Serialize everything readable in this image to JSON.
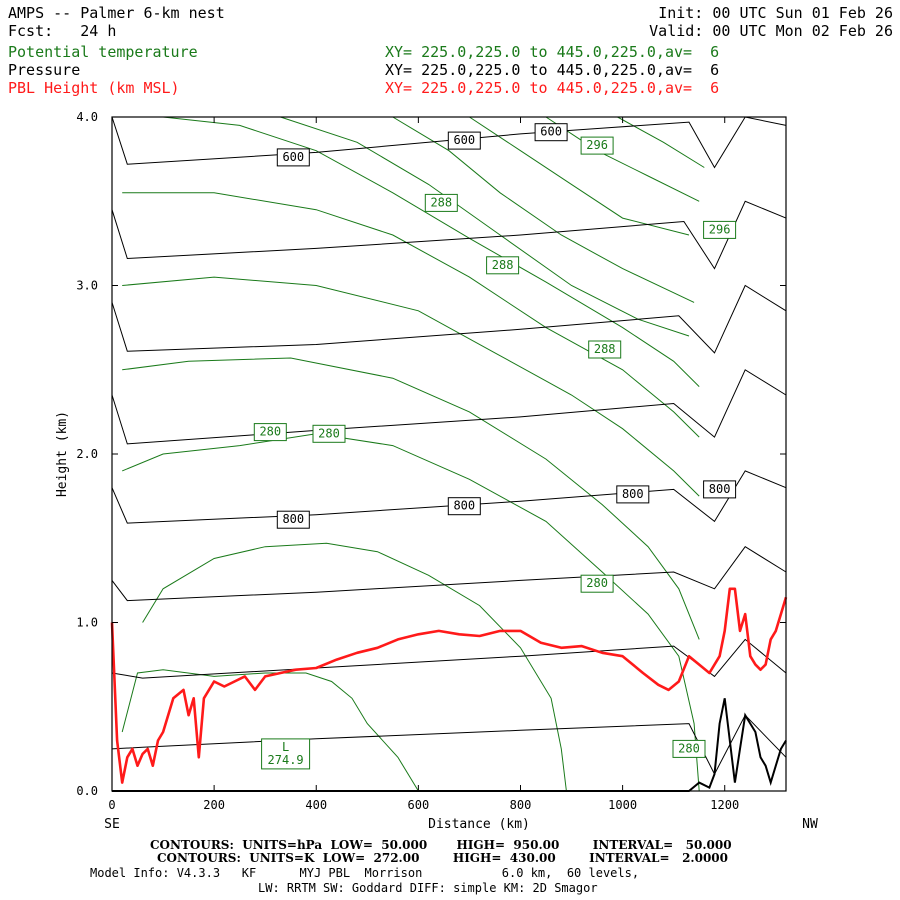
{
  "header": {
    "title": "AMPS -- Palmer 6-km nest",
    "init": "Init: 00 UTC Sun 01 Feb 26",
    "fcst": "Fcst:   24 h",
    "valid": "Valid: 00 UTC Mon 02 Feb 26",
    "fields": [
      {
        "label": "Potential temperature",
        "xy": "XY= 225.0,225.0 to 445.0,225.0,av=  6",
        "color": "#1a7a1a"
      },
      {
        "label": "Pressure",
        "xy": "XY= 225.0,225.0 to 445.0,225.0,av=  6",
        "color": "#000000"
      },
      {
        "label": "PBL Height (km MSL)",
        "xy": "XY= 225.0,225.0 to 445.0,225.0,av=  6",
        "color": "#ff1a1a"
      }
    ]
  },
  "footer": {
    "pressure_contours": "CONTOURS:  UNITS=hPa  LOW=  50.000       HIGH=  950.00        INTERVAL=   50.000",
    "theta_contours": "CONTOURS:  UNITS=K  LOW=  272.00        HIGH=  430.00        INTERVAL=   2.0000",
    "model_info_1": "Model Info: V4.3.3   KF      MYJ PBL  Morrison           6.0 km,  60 levels,",
    "model_info_2": "LW: RRTM SW: Goddard DIFF: simple KM: 2D Smagor"
  },
  "chart_data": {
    "type": "line",
    "xlabel": "Distance (km)",
    "ylabel": "Height (km)",
    "xlim": [
      0,
      1320
    ],
    "ylim": [
      0,
      4
    ],
    "x_ticks": [
      0,
      200,
      400,
      600,
      800,
      1000,
      1200
    ],
    "x_tick_labels": [
      "0",
      "200",
      "400",
      "600",
      "800",
      "1000",
      "1200"
    ],
    "y_ticks": [
      0,
      1,
      2,
      3,
      4
    ],
    "y_tick_labels": [
      "0.0",
      "1.0",
      "2.0",
      "3.0",
      "4.0"
    ],
    "x_end_labels": {
      "left": "SE",
      "right": "NW"
    },
    "pressure_isobars": [
      {
        "points": [
          [
            0,
            0.25
          ],
          [
            60,
            0.26
          ],
          [
            400,
            0.31
          ],
          [
            800,
            0.36
          ],
          [
            1130,
            0.4
          ],
          [
            1180,
            0.1
          ],
          [
            1240,
            0.45
          ],
          [
            1320,
            0.2
          ]
        ]
      },
      {
        "points": [
          [
            0,
            0.7
          ],
          [
            60,
            0.67
          ],
          [
            400,
            0.73
          ],
          [
            800,
            0.8
          ],
          [
            1100,
            0.86
          ],
          [
            1180,
            0.68
          ],
          [
            1240,
            0.9
          ],
          [
            1320,
            0.7
          ]
        ]
      },
      {
        "points": [
          [
            0,
            1.25
          ],
          [
            30,
            1.13
          ],
          [
            400,
            1.18
          ],
          [
            800,
            1.25
          ],
          [
            1100,
            1.3
          ],
          [
            1180,
            1.2
          ],
          [
            1240,
            1.45
          ],
          [
            1320,
            1.3
          ]
        ]
      },
      {
        "points": [
          [
            0,
            1.8
          ],
          [
            30,
            1.59
          ],
          [
            400,
            1.64
          ],
          [
            800,
            1.72
          ],
          [
            1100,
            1.79
          ],
          [
            1180,
            1.6
          ],
          [
            1240,
            1.9
          ],
          [
            1320,
            1.8
          ]
        ]
      },
      {
        "points": [
          [
            0,
            2.35
          ],
          [
            30,
            2.06
          ],
          [
            400,
            2.14
          ],
          [
            800,
            2.22
          ],
          [
            1100,
            2.3
          ],
          [
            1180,
            2.1
          ],
          [
            1240,
            2.5
          ],
          [
            1320,
            2.35
          ]
        ]
      },
      {
        "points": [
          [
            0,
            2.9
          ],
          [
            30,
            2.61
          ],
          [
            400,
            2.65
          ],
          [
            800,
            2.74
          ],
          [
            1110,
            2.82
          ],
          [
            1180,
            2.6
          ],
          [
            1240,
            3.0
          ],
          [
            1320,
            2.85
          ]
        ]
      },
      {
        "points": [
          [
            0,
            3.45
          ],
          [
            30,
            3.16
          ],
          [
            400,
            3.22
          ],
          [
            800,
            3.3
          ],
          [
            1120,
            3.38
          ],
          [
            1180,
            3.1
          ],
          [
            1240,
            3.5
          ],
          [
            1320,
            3.4
          ]
        ]
      },
      {
        "points": [
          [
            0,
            4.0
          ],
          [
            30,
            3.72
          ],
          [
            400,
            3.79
          ],
          [
            800,
            3.9
          ],
          [
            1130,
            3.97
          ],
          [
            1180,
            3.7
          ],
          [
            1240,
            4.0
          ],
          [
            1320,
            3.95
          ]
        ]
      }
    ],
    "pressure_labels": [
      {
        "x": 355,
        "y": 1.61,
        "text": "800"
      },
      {
        "x": 690,
        "y": 1.69,
        "text": "800"
      },
      {
        "x": 1020,
        "y": 1.76,
        "text": "800"
      },
      {
        "x": 1190,
        "y": 1.79,
        "text": "800"
      },
      {
        "x": 355,
        "y": 3.76,
        "text": "600"
      },
      {
        "x": 690,
        "y": 3.86,
        "text": "600"
      },
      {
        "x": 860,
        "y": 3.91,
        "text": "600"
      }
    ],
    "theta_isentropes": [
      {
        "points": [
          [
            20,
            0.35
          ],
          [
            50,
            0.7
          ],
          [
            100,
            0.72
          ],
          [
            200,
            0.68
          ],
          [
            300,
            0.7
          ],
          [
            380,
            0.7
          ],
          [
            430,
            0.65
          ],
          [
            470,
            0.55
          ],
          [
            500,
            0.4
          ],
          [
            560,
            0.2
          ],
          [
            600,
            0.0
          ]
        ]
      },
      {
        "points": [
          [
            60,
            1.0
          ],
          [
            100,
            1.2
          ],
          [
            200,
            1.38
          ],
          [
            300,
            1.45
          ],
          [
            420,
            1.47
          ],
          [
            520,
            1.42
          ],
          [
            620,
            1.28
          ],
          [
            720,
            1.1
          ],
          [
            800,
            0.85
          ],
          [
            860,
            0.55
          ],
          [
            880,
            0.25
          ],
          [
            890,
            0.0
          ]
        ]
      },
      {
        "points": [
          [
            20,
            1.9
          ],
          [
            100,
            2.0
          ],
          [
            250,
            2.05
          ],
          [
            400,
            2.12
          ],
          [
            550,
            2.05
          ],
          [
            700,
            1.85
          ],
          [
            850,
            1.6
          ],
          [
            960,
            1.3
          ],
          [
            1050,
            1.05
          ],
          [
            1110,
            0.8
          ],
          [
            1140,
            0.4
          ],
          [
            1150,
            0.0
          ]
        ]
      },
      {
        "points": [
          [
            20,
            2.5
          ],
          [
            150,
            2.55
          ],
          [
            350,
            2.57
          ],
          [
            550,
            2.45
          ],
          [
            700,
            2.25
          ],
          [
            850,
            1.97
          ],
          [
            960,
            1.7
          ],
          [
            1050,
            1.45
          ],
          [
            1110,
            1.2
          ],
          [
            1150,
            0.9
          ]
        ]
      },
      {
        "points": [
          [
            20,
            3.0
          ],
          [
            200,
            3.05
          ],
          [
            400,
            3.0
          ],
          [
            600,
            2.85
          ],
          [
            750,
            2.6
          ],
          [
            900,
            2.35
          ],
          [
            1000,
            2.15
          ],
          [
            1100,
            1.9
          ],
          [
            1150,
            1.75
          ]
        ]
      },
      {
        "points": [
          [
            20,
            3.55
          ],
          [
            200,
            3.55
          ],
          [
            400,
            3.45
          ],
          [
            550,
            3.3
          ],
          [
            700,
            3.05
          ],
          [
            850,
            2.75
          ],
          [
            1000,
            2.5
          ],
          [
            1100,
            2.25
          ],
          [
            1150,
            2.1
          ]
        ]
      },
      {
        "points": [
          [
            100,
            4.0
          ],
          [
            250,
            3.95
          ],
          [
            400,
            3.8
          ],
          [
            550,
            3.55
          ],
          [
            700,
            3.28
          ],
          [
            850,
            3.02
          ],
          [
            1000,
            2.75
          ],
          [
            1100,
            2.55
          ],
          [
            1150,
            2.4
          ]
        ]
      },
      {
        "points": [
          [
            330,
            4.0
          ],
          [
            480,
            3.85
          ],
          [
            620,
            3.6
          ],
          [
            760,
            3.3
          ],
          [
            900,
            3.0
          ],
          [
            1030,
            2.8
          ],
          [
            1130,
            2.7
          ]
        ]
      },
      {
        "points": [
          [
            550,
            4.0
          ],
          [
            660,
            3.8
          ],
          [
            760,
            3.55
          ],
          [
            880,
            3.3
          ],
          [
            1000,
            3.1
          ],
          [
            1140,
            2.9
          ]
        ]
      },
      {
        "points": [
          [
            700,
            4.0
          ],
          [
            800,
            3.8
          ],
          [
            900,
            3.6
          ],
          [
            1000,
            3.4
          ],
          [
            1130,
            3.3
          ]
        ]
      },
      {
        "points": [
          [
            850,
            4.0
          ],
          [
            950,
            3.8
          ],
          [
            1050,
            3.65
          ],
          [
            1150,
            3.5
          ]
        ]
      },
      {
        "points": [
          [
            990,
            4.0
          ],
          [
            1080,
            3.85
          ],
          [
            1160,
            3.7
          ]
        ]
      }
    ],
    "theta_labels": [
      {
        "x": 340,
        "y": 0.22,
        "text": "L\n274.9"
      },
      {
        "x": 1130,
        "y": 0.25,
        "text": "280"
      },
      {
        "x": 950,
        "y": 1.23,
        "text": "280"
      },
      {
        "x": 310,
        "y": 2.13,
        "text": "280"
      },
      {
        "x": 425,
        "y": 2.12,
        "text": "280"
      },
      {
        "x": 645,
        "y": 3.49,
        "text": "288"
      },
      {
        "x": 765,
        "y": 3.12,
        "text": "288"
      },
      {
        "x": 965,
        "y": 2.62,
        "text": "288"
      },
      {
        "x": 950,
        "y": 3.83,
        "text": "296"
      },
      {
        "x": 1190,
        "y": 3.33,
        "text": "296"
      }
    ],
    "pbl_height": {
      "name": "PBL Height (km MSL)",
      "color": "#ff1a1a",
      "x": [
        0,
        10,
        20,
        30,
        40,
        50,
        60,
        70,
        80,
        90,
        100,
        120,
        140,
        150,
        160,
        170,
        180,
        200,
        220,
        240,
        260,
        280,
        300,
        330,
        360,
        400,
        440,
        480,
        520,
        560,
        600,
        640,
        680,
        720,
        760,
        800,
        840,
        880,
        920,
        960,
        1000,
        1040,
        1070,
        1090,
        1110,
        1130,
        1150,
        1170,
        1190,
        1200,
        1210,
        1220,
        1230,
        1240,
        1250,
        1260,
        1270,
        1280,
        1290,
        1300,
        1310,
        1320
      ],
      "y": [
        1.0,
        0.3,
        0.05,
        0.2,
        0.25,
        0.15,
        0.22,
        0.25,
        0.15,
        0.3,
        0.35,
        0.55,
        0.6,
        0.45,
        0.55,
        0.2,
        0.55,
        0.65,
        0.62,
        0.65,
        0.68,
        0.6,
        0.68,
        0.7,
        0.72,
        0.73,
        0.78,
        0.82,
        0.85,
        0.9,
        0.93,
        0.95,
        0.93,
        0.92,
        0.95,
        0.95,
        0.88,
        0.85,
        0.86,
        0.82,
        0.8,
        0.7,
        0.63,
        0.6,
        0.65,
        0.8,
        0.75,
        0.7,
        0.8,
        0.95,
        1.2,
        1.2,
        0.95,
        1.05,
        0.8,
        0.75,
        0.72,
        0.75,
        0.9,
        0.95,
        1.05,
        1.15
      ]
    },
    "terrain": {
      "x": [
        0,
        1130,
        1150,
        1170,
        1180,
        1190,
        1200,
        1210,
        1220,
        1230,
        1240,
        1250,
        1260,
        1270,
        1280,
        1290,
        1300,
        1310,
        1320
      ],
      "y": [
        0,
        0,
        0.05,
        0.02,
        0.1,
        0.4,
        0.55,
        0.3,
        0.05,
        0.25,
        0.45,
        0.4,
        0.35,
        0.2,
        0.15,
        0.05,
        0.15,
        0.25,
        0.3
      ]
    },
    "colors": {
      "theta": "#1a7a1a",
      "pressure": "#000000",
      "pbl": "#ff1a1a"
    },
    "grid": false
  }
}
